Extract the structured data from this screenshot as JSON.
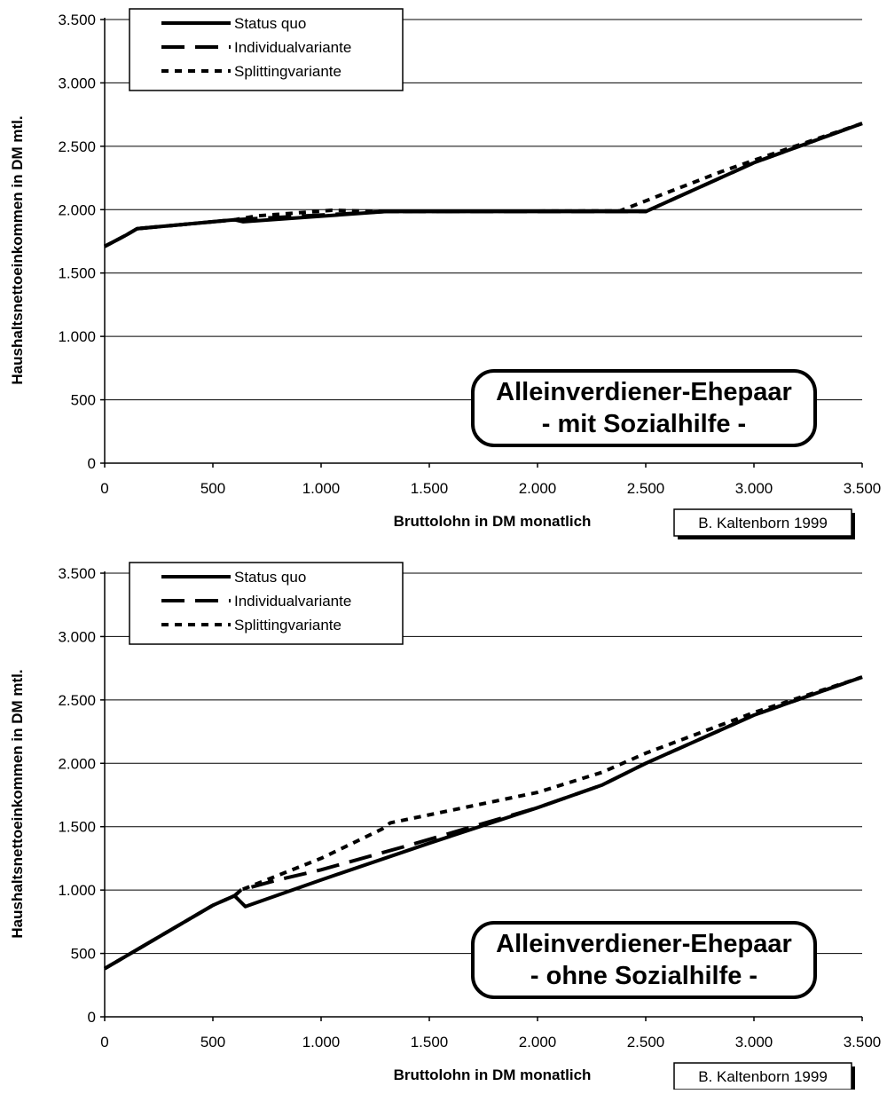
{
  "chart_data": [
    {
      "type": "line",
      "xlabel": "Bruttolohn in DM monatlich",
      "ylabel": "Haushaltsnettoeinkommen in DM mtl.",
      "xlim": [
        0,
        3500
      ],
      "ylim": [
        0,
        3500
      ],
      "x_ticks": [
        0,
        500,
        1000,
        1500,
        2000,
        2500,
        3000,
        3500
      ],
      "y_ticks": [
        0,
        500,
        1000,
        1500,
        2000,
        2500,
        3000,
        3500
      ],
      "x_tick_labels": [
        "0",
        "500",
        "1.000",
        "1.500",
        "2.000",
        "2.500",
        "3.000",
        "3.500"
      ],
      "y_tick_labels": [
        "0",
        "500",
        "1.000",
        "1.500",
        "2.000",
        "2.500",
        "3.000",
        "3.500"
      ],
      "grid": "horizontal",
      "legend_position": "top-left",
      "annotation": [
        "Alleinverdiener-Ehepaar",
        "- mit Sozialhilfe -"
      ],
      "credit": "B. Kaltenborn 1999",
      "series": [
        {
          "name": "Status quo",
          "style": "solid",
          "points": [
            [
              0,
              1710
            ],
            [
              100,
              1800
            ],
            [
              150,
              1850
            ],
            [
              600,
              1920
            ],
            [
              640,
              1905
            ],
            [
              1300,
              1985
            ],
            [
              2500,
              1985
            ],
            [
              3000,
              2370
            ],
            [
              3500,
              2680
            ]
          ]
        },
        {
          "name": "Individualvariante",
          "style": "dashed",
          "points": [
            [
              0,
              1710
            ],
            [
              100,
              1800
            ],
            [
              150,
              1850
            ],
            [
              600,
              1920
            ],
            [
              650,
              1925
            ],
            [
              1300,
              1985
            ],
            [
              2500,
              1985
            ],
            [
              3000,
              2370
            ],
            [
              3500,
              2680
            ]
          ]
        },
        {
          "name": "Splittingvariante",
          "style": "dotted",
          "points": [
            [
              0,
              1710
            ],
            [
              100,
              1800
            ],
            [
              150,
              1850
            ],
            [
              600,
              1920
            ],
            [
              700,
              1950
            ],
            [
              1050,
              1995
            ],
            [
              1300,
              1985
            ],
            [
              2380,
              1990
            ],
            [
              2850,
              2300
            ],
            [
              3000,
              2390
            ],
            [
              3500,
              2680
            ]
          ]
        }
      ]
    },
    {
      "type": "line",
      "xlabel": "Bruttolohn in DM monatlich",
      "ylabel": "Haushaltsnettoeinkommen in DM mtl.",
      "xlim": [
        0,
        3500
      ],
      "ylim": [
        0,
        3500
      ],
      "x_ticks": [
        0,
        500,
        1000,
        1500,
        2000,
        2500,
        3000,
        3500
      ],
      "y_ticks": [
        0,
        500,
        1000,
        1500,
        2000,
        2500,
        3000,
        3500
      ],
      "x_tick_labels": [
        "0",
        "500",
        "1.000",
        "1.500",
        "2.000",
        "2.500",
        "3.000",
        "3.500"
      ],
      "y_tick_labels": [
        "0",
        "500",
        "1.000",
        "1.500",
        "2.000",
        "2.500",
        "3.000",
        "3.500"
      ],
      "grid": "horizontal",
      "legend_position": "top-left",
      "annotation": [
        "Alleinverdiener-Ehepaar",
        "- ohne Sozialhilfe -"
      ],
      "credit": "B. Kaltenborn 1999",
      "series": [
        {
          "name": "Status quo",
          "style": "solid",
          "points": [
            [
              0,
              380
            ],
            [
              250,
              630
            ],
            [
              500,
              880
            ],
            [
              600,
              955
            ],
            [
              650,
              870
            ],
            [
              1000,
              1080
            ],
            [
              1500,
              1370
            ],
            [
              2000,
              1650
            ],
            [
              2300,
              1830
            ],
            [
              2500,
              2000
            ],
            [
              3000,
              2380
            ],
            [
              3500,
              2680
            ]
          ]
        },
        {
          "name": "Individualvariante",
          "style": "dashed",
          "points": [
            [
              0,
              380
            ],
            [
              250,
              630
            ],
            [
              500,
              880
            ],
            [
              600,
              955
            ],
            [
              630,
              1000
            ],
            [
              800,
              1080
            ],
            [
              1000,
              1160
            ],
            [
              1400,
              1350
            ],
            [
              2000,
              1650
            ],
            [
              2300,
              1830
            ],
            [
              2500,
              2000
            ],
            [
              3000,
              2380
            ],
            [
              3500,
              2680
            ]
          ]
        },
        {
          "name": "Splittingvariante",
          "style": "dotted",
          "points": [
            [
              0,
              380
            ],
            [
              250,
              630
            ],
            [
              500,
              880
            ],
            [
              600,
              955
            ],
            [
              630,
              1000
            ],
            [
              1000,
              1250
            ],
            [
              1280,
              1480
            ],
            [
              1320,
              1530
            ],
            [
              2000,
              1770
            ],
            [
              2300,
              1930
            ],
            [
              2500,
              2080
            ],
            [
              3000,
              2400
            ],
            [
              3500,
              2680
            ]
          ]
        }
      ]
    }
  ]
}
